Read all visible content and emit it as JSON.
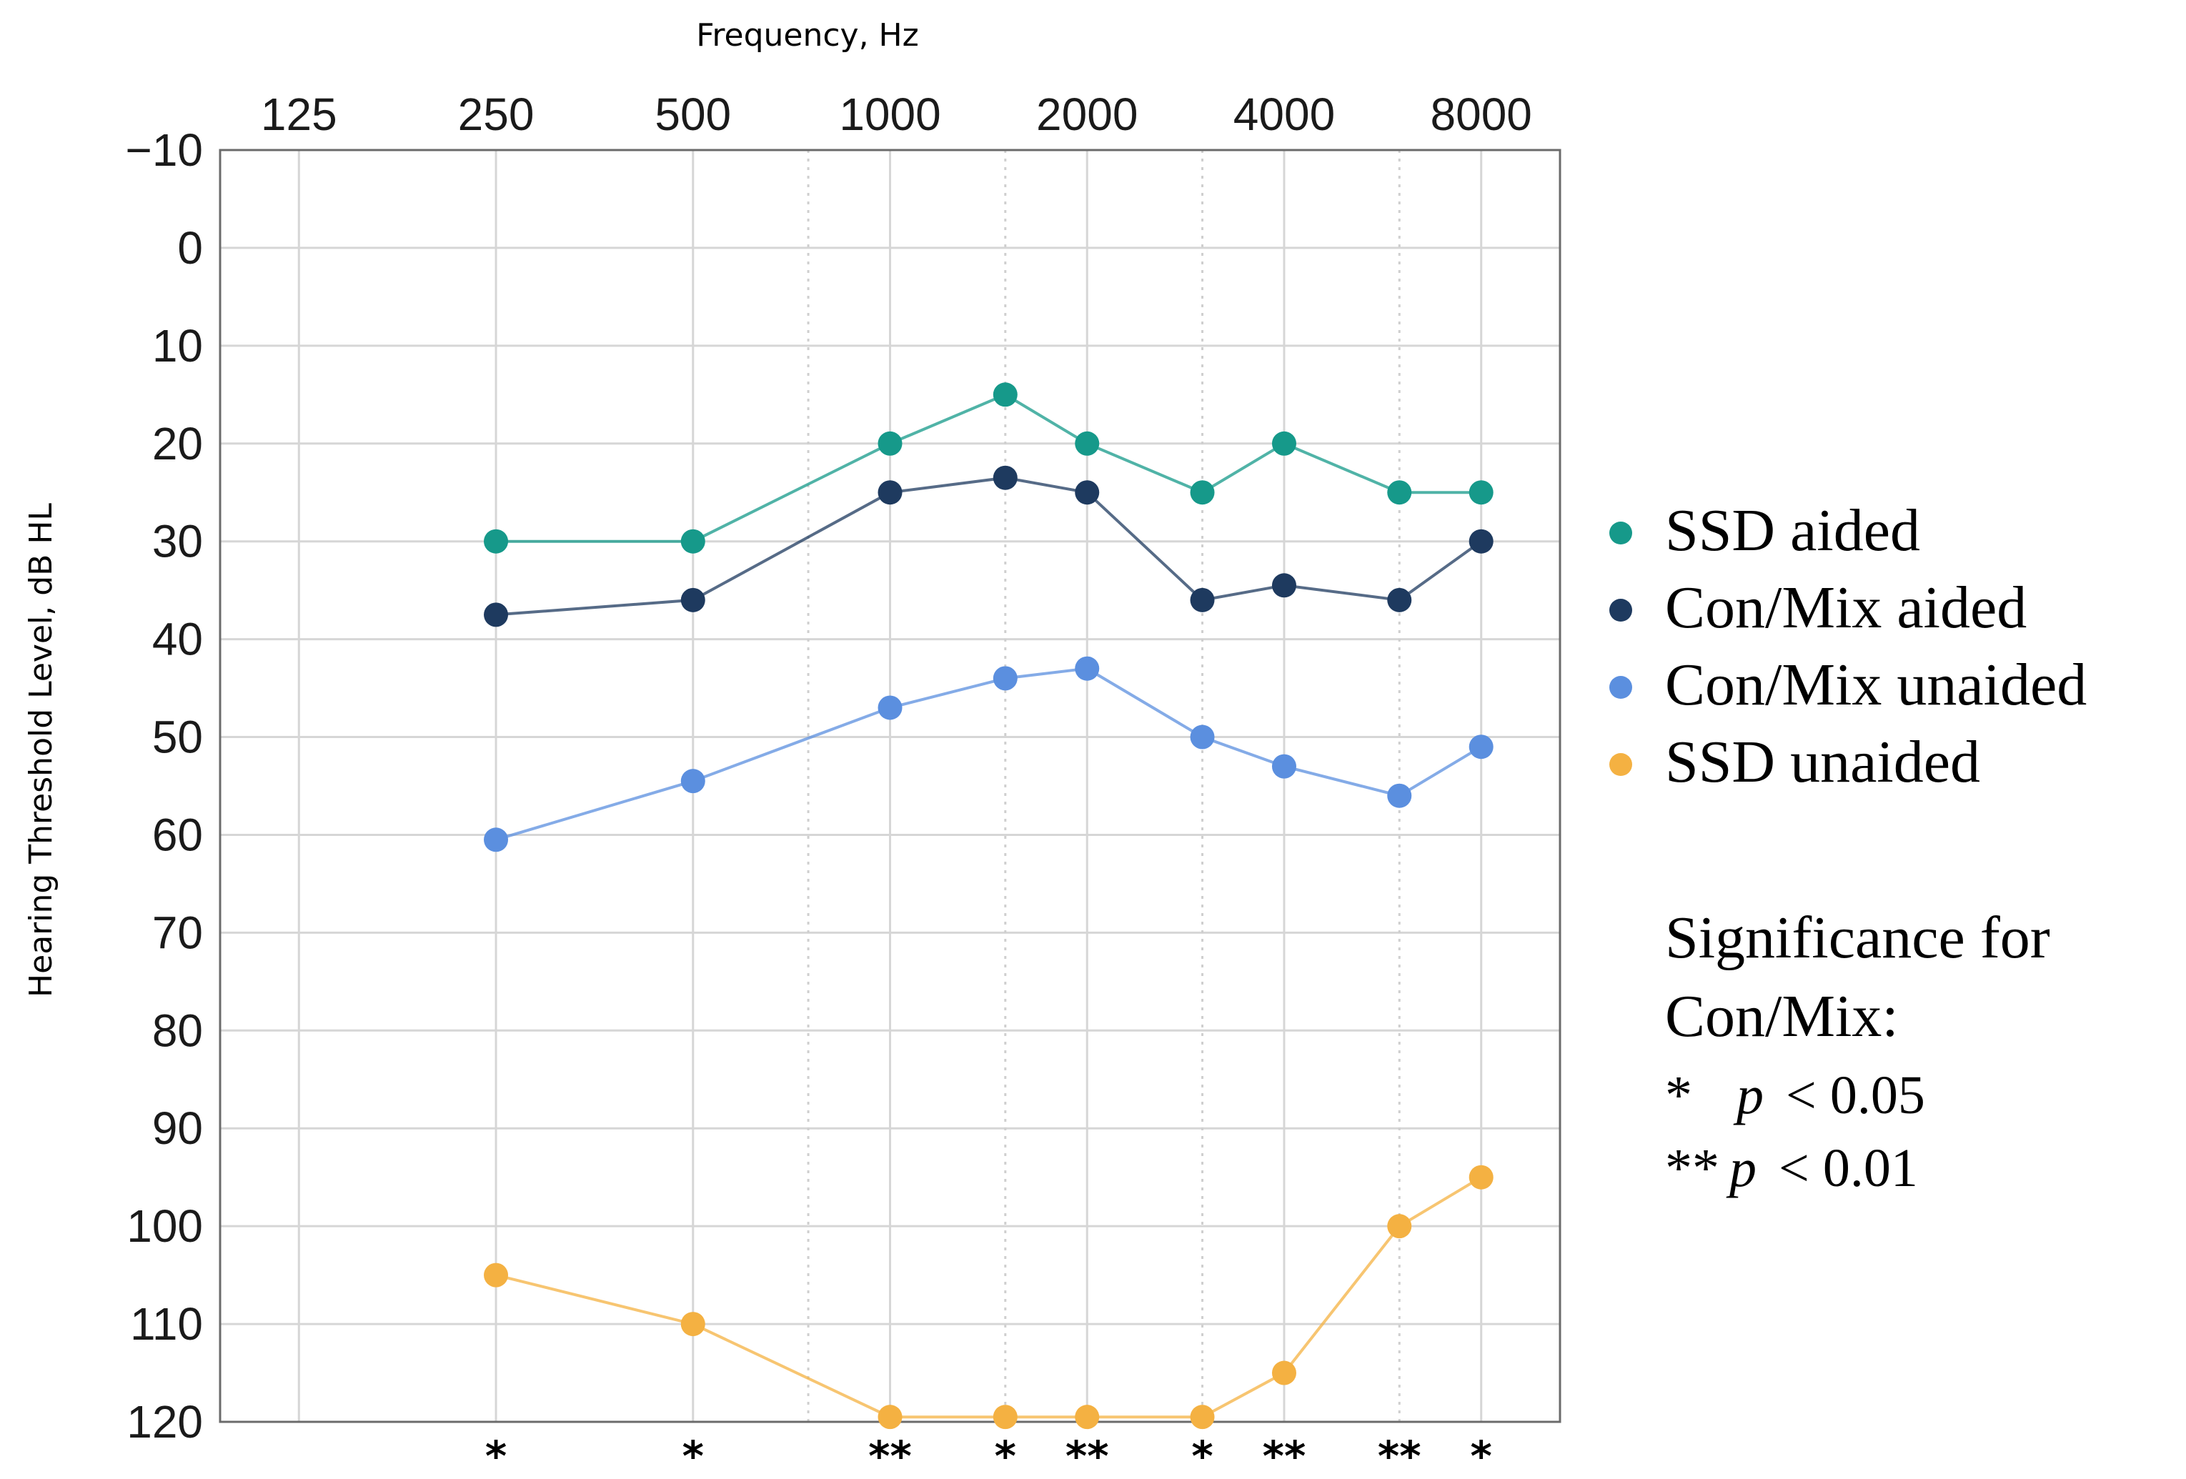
{
  "chart_data": {
    "type": "line",
    "title": "",
    "xlabel": "Frequency, Hz",
    "ylabel": "Hearing Threshold Level, dB HL",
    "x_tick_labels": [
      "125",
      "250",
      "500",
      "1000",
      "2000",
      "4000",
      "8000"
    ],
    "y_tick_labels": [
      "−10",
      "0",
      "10",
      "20",
      "30",
      "40",
      "50",
      "60",
      "70",
      "80",
      "90",
      "100",
      "110",
      "120"
    ],
    "ylim": [
      -10,
      120
    ],
    "y_inverted": true,
    "x": [
      250,
      500,
      1000,
      1500,
      2000,
      3000,
      4000,
      6000,
      8000
    ],
    "series": [
      {
        "name": "SSD aided",
        "color": "#16998a",
        "values": [
          30,
          30,
          20,
          15,
          20,
          25,
          20,
          25,
          25
        ]
      },
      {
        "name": "Con/Mix aided",
        "color": "#1e3a5f",
        "values": [
          37.5,
          36,
          25,
          23.5,
          25,
          36,
          34.5,
          36,
          30
        ]
      },
      {
        "name": "Con/Mix unaided",
        "color": "#5b8fdf",
        "values": [
          60.5,
          54.5,
          47,
          44,
          43,
          50,
          53,
          56,
          51
        ]
      },
      {
        "name": "SSD unaided",
        "color": "#f4b142",
        "values": [
          105,
          110,
          119.5,
          119.5,
          119.5,
          119.5,
          115,
          100,
          95
        ]
      }
    ],
    "significance_markers": [
      "*",
      "*",
      "**",
      "*",
      "**",
      "*",
      "**",
      "**",
      "*"
    ],
    "legend_placement": "right",
    "significance_note": {
      "title_line1": "Significance for",
      "title_line2": "Con/Mix:",
      "line1_stars": "*",
      "line1_p": "p",
      "line1_rest": "< 0.05",
      "line2_stars": "**",
      "line2_p": "p",
      "line2_rest": "< 0.01"
    }
  }
}
